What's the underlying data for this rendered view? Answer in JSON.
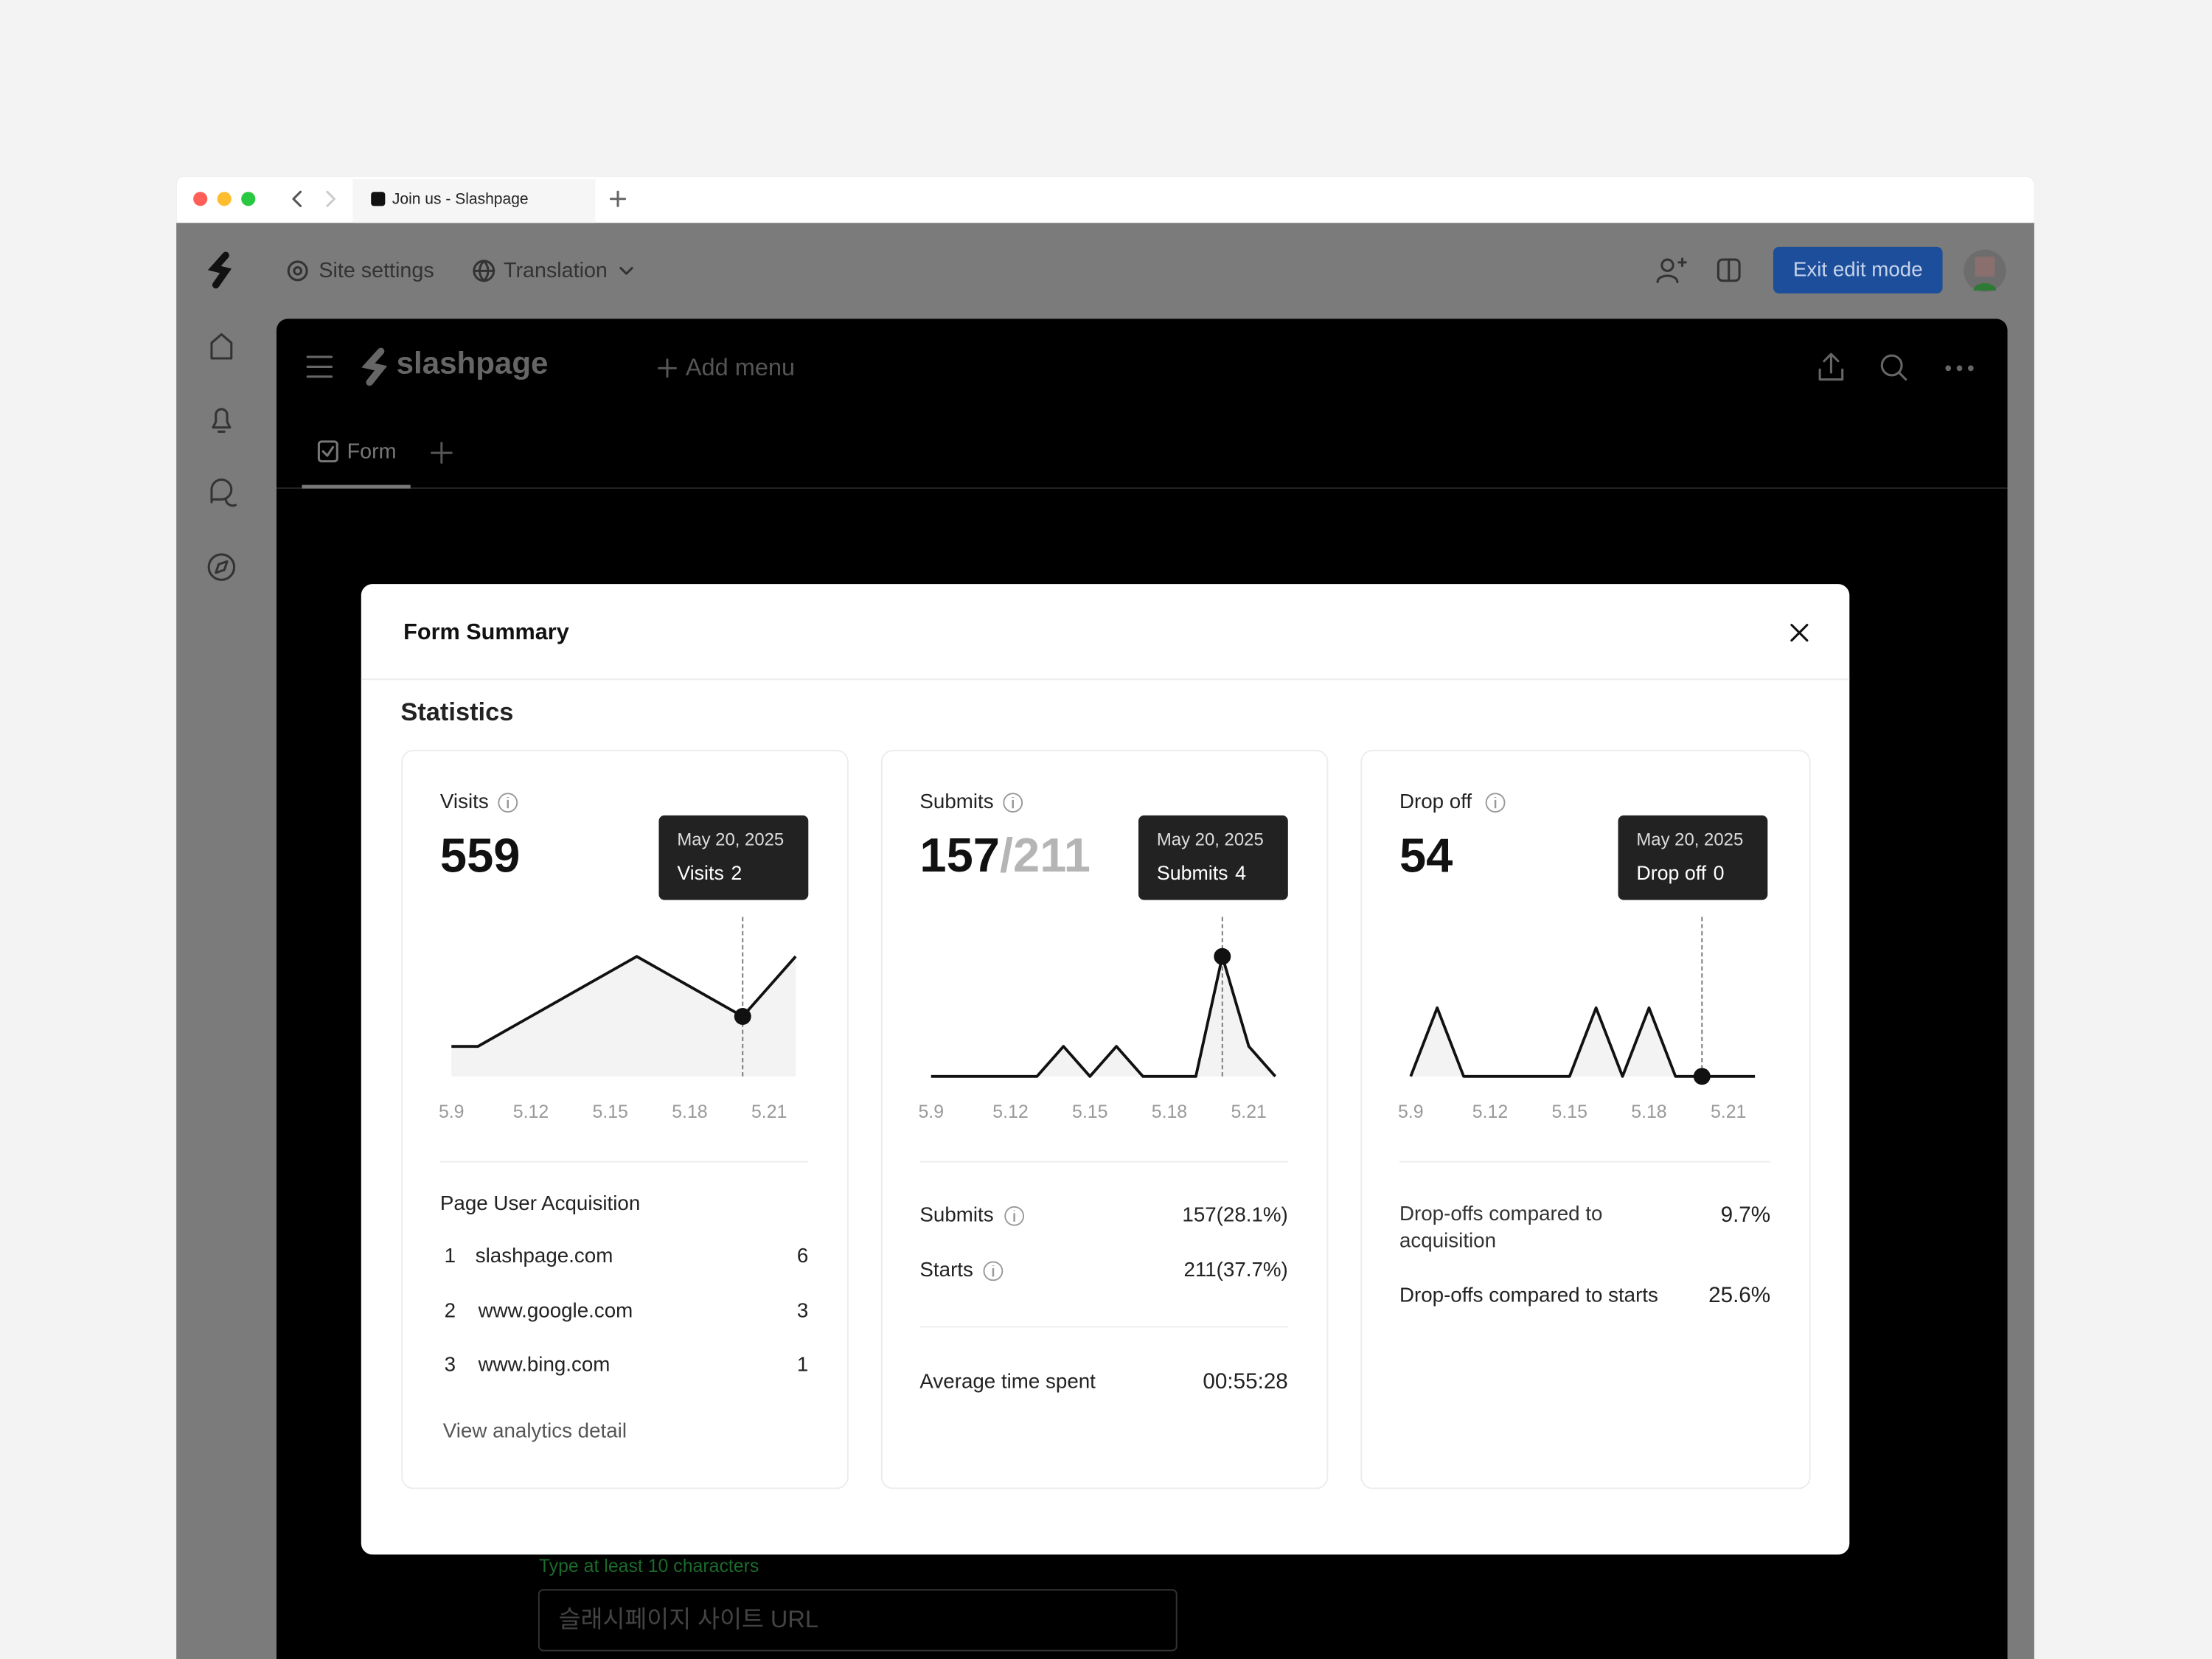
{
  "browser": {
    "tab_title": "Join us - Slashpage"
  },
  "toolbar": {
    "site_settings": "Site settings",
    "translation": "Translation",
    "exit_button": "Exit edit mode"
  },
  "site": {
    "logo": "slashpage",
    "add_menu": "Add menu",
    "tab": "Form",
    "hint": "Type at least 10 characters",
    "placeholder": "슬래시페이지 사이트 URL"
  },
  "modal": {
    "title": "Form Summary",
    "section": "Statistics",
    "cards": [
      {
        "label": "Visits",
        "value": 559,
        "acquisition": {
          "title": "Page User Acquisition",
          "rows": [
            {
              "rank": 1,
              "domain": "slashpage.com",
              "count": 6
            },
            {
              "rank": 2,
              "domain": "www.google.com",
              "count": 3
            },
            {
              "rank": 3,
              "domain": "www.bing.com",
              "count": 1
            }
          ]
        },
        "link": "View analytics detail"
      },
      {
        "label": "Submits",
        "value": 157,
        "separator": "/",
        "total": 211,
        "rows": [
          {
            "label": "Submits",
            "value": "157(28.1%)"
          },
          {
            "label": "Starts",
            "value": "211(37.7%)"
          }
        ],
        "average": {
          "label": "Average time spent",
          "value": "00:55:28"
        }
      },
      {
        "label": "Drop off",
        "value": 54,
        "rows": [
          {
            "label": "Drop-offs compared to acquisition",
            "value": "9.7%"
          },
          {
            "label": "Drop-offs compared to starts",
            "value": "25.6%"
          }
        ]
      }
    ]
  },
  "chart_data": [
    {
      "type": "area",
      "x": [
        9,
        10,
        11,
        12,
        13,
        14,
        15,
        16,
        17,
        18,
        19,
        20,
        21,
        22
      ],
      "values": [
        1,
        1,
        1.5,
        2,
        2.5,
        3,
        3.5,
        4,
        3.5,
        3,
        2.5,
        2,
        3,
        4
      ],
      "xlim": [
        9,
        22
      ],
      "ylim": [
        0,
        4
      ],
      "xticks": [
        {
          "value": 9,
          "label": "5.9"
        },
        {
          "value": 12,
          "label": "5.12"
        },
        {
          "value": 15,
          "label": "5.15"
        },
        {
          "value": 18,
          "label": "5.18"
        },
        {
          "value": 21,
          "label": "5.21"
        }
      ],
      "color": "#111111",
      "tooltip": {
        "date": "May 20, 2025",
        "label": "Visits",
        "x": 20
      }
    },
    {
      "type": "area",
      "x": [
        9,
        10,
        11,
        12,
        13,
        14,
        15,
        16,
        17,
        18,
        19,
        20,
        21,
        22
      ],
      "values": [
        0,
        0,
        0,
        0,
        0,
        1,
        0,
        1,
        0,
        0,
        0,
        4,
        1,
        0
      ],
      "xlim": [
        9,
        22
      ],
      "ylim": [
        0,
        4
      ],
      "xticks": [
        {
          "value": 9,
          "label": "5.9"
        },
        {
          "value": 12,
          "label": "5.12"
        },
        {
          "value": 15,
          "label": "5.15"
        },
        {
          "value": 18,
          "label": "5.18"
        },
        {
          "value": 21,
          "label": "5.21"
        }
      ],
      "color": "#111111",
      "tooltip": {
        "date": "May 20, 2025",
        "label": "Submits",
        "x": 20
      }
    },
    {
      "type": "area",
      "x": [
        9,
        10,
        11,
        12,
        13,
        14,
        15,
        16,
        17,
        18,
        19,
        20,
        21,
        22
      ],
      "values": [
        0,
        2,
        0,
        0,
        0,
        0,
        0,
        2,
        0,
        2,
        0,
        0,
        0,
        0
      ],
      "xlim": [
        9,
        22
      ],
      "ylim": [
        0,
        3.5
      ],
      "xticks": [
        {
          "value": 9,
          "label": "5.9"
        },
        {
          "value": 12,
          "label": "5.12"
        },
        {
          "value": 15,
          "label": "5.15"
        },
        {
          "value": 18,
          "label": "5.18"
        },
        {
          "value": 21,
          "label": "5.21"
        }
      ],
      "color": "#111111",
      "tooltip": {
        "date": "May 20, 2025",
        "label": "Drop off",
        "x": 20
      }
    }
  ]
}
